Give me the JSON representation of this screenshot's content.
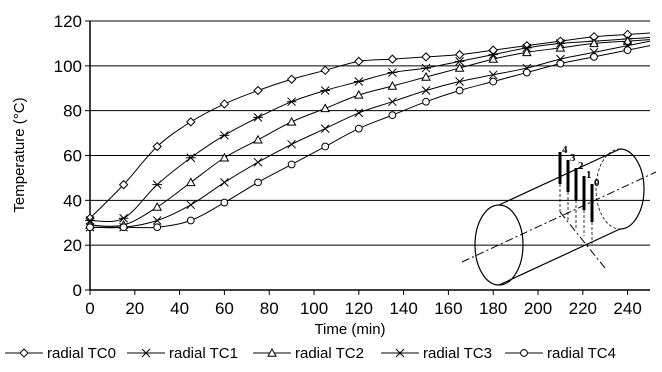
{
  "chart_data": {
    "type": "line",
    "title": "",
    "xlabel": "Time (min)",
    "ylabel": "Temperature (°C)",
    "xlim": [
      0,
      250
    ],
    "ylim": [
      0,
      120
    ],
    "xticks": [
      "0",
      "20",
      "40",
      "60",
      "80",
      "100",
      "120",
      "140",
      "160",
      "180",
      "200",
      "220",
      "240"
    ],
    "yticks": [
      "0",
      "20",
      "40",
      "60",
      "80",
      "100",
      "120"
    ],
    "grid": "horizontal",
    "legend": "bottom",
    "series": [
      {
        "name": "radial TC0",
        "marker": "diamond",
        "x": [
          0,
          15,
          30,
          45,
          60,
          75,
          90,
          105,
          120,
          135,
          150,
          165,
          180,
          195,
          210,
          225,
          240
        ],
        "y": [
          32,
          47,
          64,
          75,
          83,
          89,
          94,
          98,
          102,
          103,
          104,
          105,
          107,
          109,
          111,
          113,
          114
        ]
      },
      {
        "name": "radial TC1",
        "marker": "star",
        "x": [
          0,
          15,
          30,
          45,
          60,
          75,
          90,
          105,
          120,
          135,
          150,
          165,
          180,
          195,
          210,
          225,
          240
        ],
        "y": [
          31,
          32,
          47,
          59,
          69,
          77,
          84,
          89,
          93,
          97,
          99,
          102,
          105,
          108,
          110,
          111,
          112
        ]
      },
      {
        "name": "radial TC2",
        "marker": "triangle",
        "x": [
          0,
          15,
          30,
          45,
          60,
          75,
          90,
          105,
          120,
          135,
          150,
          165,
          180,
          195,
          210,
          225,
          240
        ],
        "y": [
          29,
          29,
          37,
          48,
          59,
          67,
          75,
          81,
          87,
          91,
          95,
          99,
          103,
          106,
          108,
          110,
          111
        ]
      },
      {
        "name": "radial TC3",
        "marker": "x",
        "x": [
          0,
          15,
          30,
          45,
          60,
          75,
          90,
          105,
          120,
          135,
          150,
          165,
          180,
          195,
          210,
          225,
          240
        ],
        "y": [
          28,
          28,
          31,
          38,
          48,
          57,
          65,
          72,
          79,
          84,
          89,
          93,
          96,
          99,
          103,
          106,
          109
        ]
      },
      {
        "name": "radial TC4",
        "marker": "circle",
        "x": [
          0,
          15,
          30,
          45,
          60,
          75,
          90,
          105,
          120,
          135,
          150,
          165,
          180,
          195,
          210,
          225,
          240
        ],
        "y": [
          28,
          28,
          28,
          31,
          39,
          48,
          56,
          64,
          72,
          78,
          84,
          89,
          93,
          97,
          101,
          104,
          107
        ]
      }
    ],
    "inset_labels": [
      "4",
      "3",
      "2",
      "1",
      "0"
    ]
  }
}
